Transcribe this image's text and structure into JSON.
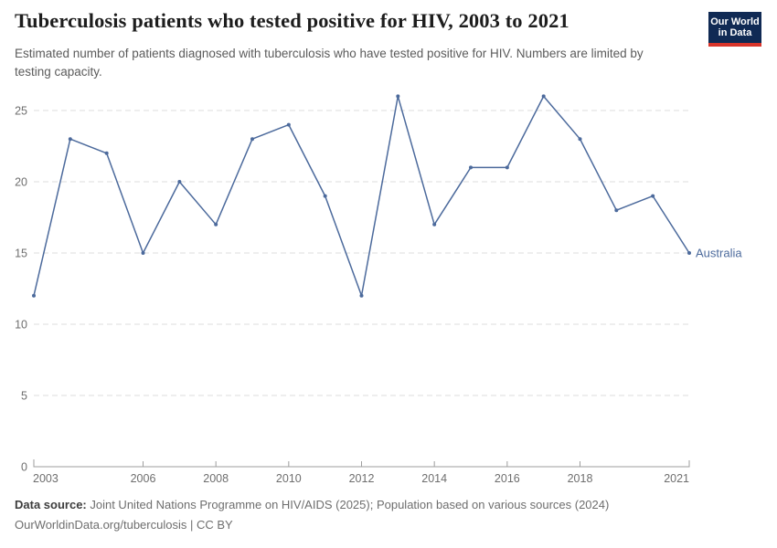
{
  "header": {
    "title": "Tuberculosis patients who tested positive for HIV, 2003 to 2021",
    "subtitle": "Estimated number of patients diagnosed with tuberculosis who have tested positive for HIV. Numbers are limited by testing capacity."
  },
  "logo": {
    "line1": "Our World",
    "line2": "in Data",
    "bg_color": "#102a54",
    "accent_color": "#d8352b"
  },
  "chart_data": {
    "type": "line",
    "title": "Tuberculosis patients who tested positive for HIV, 2003 to 2021",
    "x": [
      2003,
      2004,
      2005,
      2006,
      2007,
      2008,
      2009,
      2010,
      2011,
      2012,
      2013,
      2014,
      2015,
      2016,
      2017,
      2018,
      2019,
      2020,
      2021
    ],
    "series": [
      {
        "name": "Australia",
        "values": [
          12,
          23,
          22,
          15,
          20,
          17,
          23,
          24,
          19,
          12,
          26,
          17,
          21,
          21,
          26,
          23,
          18,
          19,
          15
        ]
      }
    ],
    "xlabel": "",
    "ylabel": "",
    "ylim": [
      0,
      26
    ],
    "yticks": [
      0,
      5,
      10,
      15,
      20,
      25
    ],
    "xticks": [
      2003,
      2006,
      2008,
      2010,
      2012,
      2014,
      2016,
      2018,
      2021
    ],
    "grid": "horizontal-dashed",
    "legend_position": "end-of-line-label"
  },
  "colors": {
    "line": "#4c6a9c",
    "entity_label": "#4c6a9c",
    "grid": "#dcdcdc",
    "axis": "#9e9e9e",
    "tick_text": "#6e6e6e"
  },
  "footer": {
    "datasource_label": "Data source:",
    "datasource_text": " Joint United Nations Programme on HIV/AIDS (2025); Population based on various sources (2024)",
    "attribution": "OurWorldinData.org/tuberculosis | CC BY"
  }
}
